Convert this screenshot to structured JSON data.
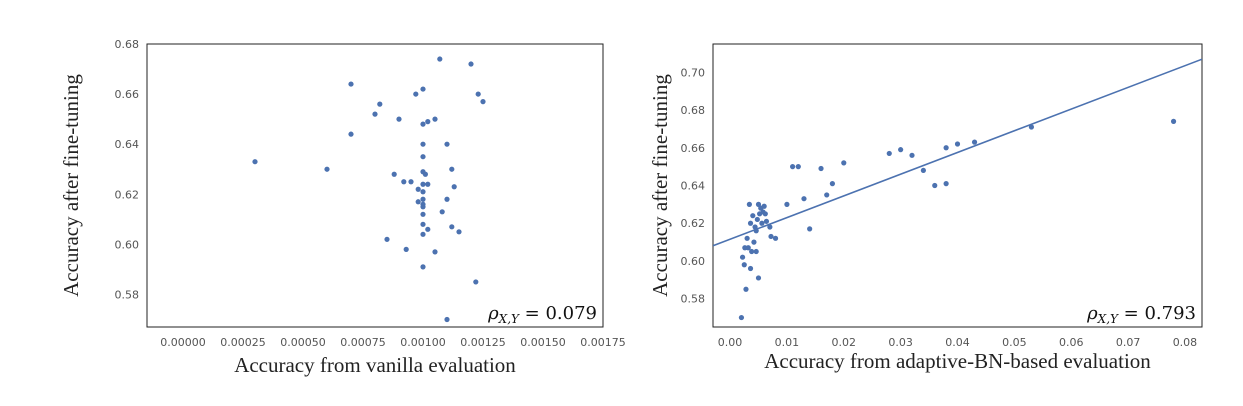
{
  "chart_data": [
    {
      "type": "scatter",
      "xlabel": "Accuracy from vanilla evaluation",
      "ylabel": "Accuracy after fine-tuning",
      "xlim": [
        -0.00015,
        0.00175
      ],
      "ylim": [
        0.567,
        0.68
      ],
      "xticks": [
        0.0,
        0.00025,
        0.0005,
        0.00075,
        0.001,
        0.00125,
        0.0015,
        0.00175
      ],
      "xtick_labels": [
        "0.00000",
        "0.00025",
        "0.00050",
        "0.00075",
        "0.00100",
        "0.00125",
        "0.00150",
        "0.00175"
      ],
      "yticks": [
        0.58,
        0.6,
        0.62,
        0.64,
        0.66,
        0.68
      ],
      "ytick_labels": [
        "0.58",
        "0.60",
        "0.62",
        "0.64",
        "0.66",
        "0.68"
      ],
      "annotation": "ρX,Y = 0.079",
      "grid": false,
      "x": [
        0.0003,
        0.0006,
        0.0007,
        0.0007,
        0.0008,
        0.00082,
        0.00085,
        0.00088,
        0.0009,
        0.00092,
        0.00093,
        0.00095,
        0.00097,
        0.00098,
        0.001,
        0.001,
        0.001,
        0.001,
        0.001,
        0.001,
        0.001,
        0.001,
        0.001,
        0.001,
        0.001,
        0.001,
        0.001,
        0.001,
        0.00102,
        0.00102,
        0.00102,
        0.00105,
        0.00105,
        0.00107,
        0.00108,
        0.0011,
        0.0011,
        0.00112,
        0.00112,
        0.00113,
        0.00115,
        0.0012,
        0.00122,
        0.00123,
        0.00125,
        0.0011,
        0.00098,
        0.00101
      ],
      "y": [
        0.633,
        0.63,
        0.664,
        0.644,
        0.652,
        0.656,
        0.602,
        0.628,
        0.65,
        0.625,
        0.598,
        0.625,
        0.66,
        0.617,
        0.662,
        0.648,
        0.64,
        0.635,
        0.629,
        0.624,
        0.621,
        0.618,
        0.616,
        0.612,
        0.608,
        0.604,
        0.591,
        0.615,
        0.649,
        0.606,
        0.624,
        0.597,
        0.65,
        0.674,
        0.613,
        0.64,
        0.57,
        0.607,
        0.63,
        0.623,
        0.605,
        0.672,
        0.585,
        0.66,
        0.657,
        0.618,
        0.622,
        0.628
      ]
    },
    {
      "type": "scatter",
      "xlabel": "Accuracy from adaptive-BN-based evaluation",
      "ylabel": "Accuracy after fine-tuning",
      "xlim": [
        -0.003,
        0.083
      ],
      "ylim": [
        0.565,
        0.715
      ],
      "xticks": [
        0.0,
        0.01,
        0.02,
        0.03,
        0.04,
        0.05,
        0.06,
        0.07,
        0.08
      ],
      "xtick_labels": [
        "0.00",
        "0.01",
        "0.02",
        "0.03",
        "0.04",
        "0.05",
        "0.06",
        "0.07",
        "0.08"
      ],
      "yticks": [
        0.58,
        0.6,
        0.62,
        0.64,
        0.66,
        0.68,
        0.7
      ],
      "ytick_labels": [
        "0.58",
        "0.60",
        "0.62",
        "0.64",
        "0.66",
        "0.68",
        "0.70"
      ],
      "annotation": "ρX,Y = 0.793",
      "grid": false,
      "fit_line": {
        "slope": 1.15,
        "intercept": 0.6115
      },
      "x": [
        0.002,
        0.0022,
        0.0025,
        0.0028,
        0.003,
        0.0032,
        0.0034,
        0.0036,
        0.0038,
        0.004,
        0.0042,
        0.0044,
        0.0046,
        0.0048,
        0.005,
        0.005,
        0.0052,
        0.0054,
        0.0056,
        0.0058,
        0.006,
        0.0062,
        0.0064,
        0.007,
        0.0072,
        0.008,
        0.01,
        0.011,
        0.012,
        0.013,
        0.014,
        0.016,
        0.017,
        0.018,
        0.02,
        0.028,
        0.03,
        0.032,
        0.034,
        0.036,
        0.038,
        0.038,
        0.04,
        0.043,
        0.053,
        0.078,
        0.0046,
        0.0036,
        0.0026
      ],
      "y": [
        0.57,
        0.602,
        0.598,
        0.585,
        0.612,
        0.607,
        0.63,
        0.62,
        0.605,
        0.624,
        0.61,
        0.618,
        0.616,
        0.622,
        0.63,
        0.591,
        0.625,
        0.628,
        0.62,
        0.626,
        0.629,
        0.625,
        0.621,
        0.618,
        0.613,
        0.612,
        0.63,
        0.65,
        0.65,
        0.633,
        0.617,
        0.649,
        0.635,
        0.641,
        0.652,
        0.657,
        0.659,
        0.656,
        0.648,
        0.64,
        0.66,
        0.641,
        0.662,
        0.663,
        0.671,
        0.674,
        0.605,
        0.596,
        0.607
      ]
    }
  ]
}
